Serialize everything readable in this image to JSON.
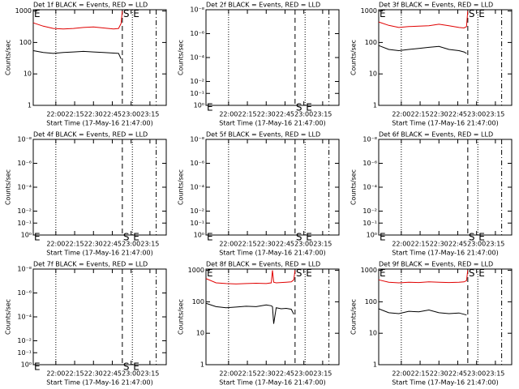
{
  "chart_data": [
    {
      "type": "line",
      "title": "Det 1f BLACK = Events, RED = LLD",
      "y_label": "Counts/sec",
      "x_label": "Start Time (17-May-16 21:47:00)",
      "log_scale": true,
      "xlim": [
        1302,
        1408
      ],
      "xticks": [
        {
          "value": 1320,
          "label": "22:00"
        },
        {
          "value": 1335,
          "label": "22:15"
        },
        {
          "value": 1350,
          "label": "22:30"
        },
        {
          "value": 1365,
          "label": "22:45"
        },
        {
          "value": 1380,
          "label": "23:00"
        },
        {
          "value": 1395,
          "label": "23:15"
        }
      ],
      "ylim": [
        1,
        1100
      ],
      "yticks": [
        1,
        10,
        100,
        1000
      ],
      "x": [
        1302,
        1310,
        1318,
        1326,
        1334,
        1342,
        1350,
        1358,
        1366,
        1370,
        1372,
        1373
      ],
      "series": [
        {
          "color": "#e00000",
          "values": [
            420,
            330,
            280,
            270,
            280,
            300,
            310,
            290,
            270,
            280,
            400,
            1000
          ]
        },
        {
          "color": "#000000",
          "values": [
            55,
            48,
            45,
            48,
            50,
            52,
            50,
            48,
            46,
            45,
            30,
            null
          ]
        }
      ],
      "markers": [
        {
          "x": 1320,
          "style": "dotted"
        },
        {
          "x": 1373,
          "style": "dashed"
        },
        {
          "x": 1381,
          "style": "dotted"
        },
        {
          "x": 1400,
          "style": "dashdot"
        }
      ],
      "annotations": [
        {
          "text": "E",
          "x": 1302,
          "y": 800
        },
        {
          "text": "S",
          "x": 1373,
          "y": 800
        },
        {
          "text": "E",
          "x": 1381,
          "y": 800
        }
      ]
    },
    {
      "type": "line",
      "title": "Det 2f BLACK = Events, RED = LLD",
      "y_label": "Counts/sec",
      "x_label": "Start Time (17-May-16 21:47:00)",
      "log_scale": true,
      "xlim": [
        1302,
        1408
      ],
      "xticks": [
        {
          "value": 1320,
          "label": "22:00"
        },
        {
          "value": 1335,
          "label": "22:15"
        },
        {
          "value": 1350,
          "label": "22:30"
        },
        {
          "value": 1365,
          "label": "22:45"
        },
        {
          "value": 1380,
          "label": "23:00"
        },
        {
          "value": 1395,
          "label": "23:15"
        }
      ],
      "ylim": [
        1,
        1e-08
      ],
      "yticks": [
        {
          "value": 1e-08,
          "label": "10⁻⁸"
        },
        {
          "value": 1e-06,
          "label": "10⁻⁶"
        },
        {
          "value": 0.0001,
          "label": "10⁻⁴"
        },
        {
          "value": 0.01,
          "label": "10⁻²"
        },
        {
          "value": 0.1,
          "label": "10⁻¹"
        },
        {
          "value": 1,
          "label": "10⁰"
        }
      ],
      "markers": [
        {
          "x": 1320,
          "style": "dotted"
        },
        {
          "x": 1373,
          "style": "dashed"
        },
        {
          "x": 1381,
          "style": "dotted"
        },
        {
          "x": 1400,
          "style": "dashdot"
        }
      ],
      "annotations": [
        {
          "text": "E",
          "x": 1302,
          "y": 1.6
        },
        {
          "text": "S",
          "x": 1373,
          "y": 1.6
        },
        {
          "text": "E",
          "x": 1381,
          "y": 1.6
        }
      ]
    },
    {
      "type": "line",
      "title": "Det 3f BLACK = Events, RED = LLD",
      "y_label": "Counts/sec",
      "x_label": "Start Time (17-May-16 21:47:00)",
      "log_scale": true,
      "xlim": [
        1302,
        1408
      ],
      "xticks": [
        {
          "value": 1320,
          "label": "22:00"
        },
        {
          "value": 1335,
          "label": "22:15"
        },
        {
          "value": 1350,
          "label": "22:30"
        },
        {
          "value": 1365,
          "label": "22:45"
        },
        {
          "value": 1380,
          "label": "23:00"
        },
        {
          "value": 1395,
          "label": "23:15"
        }
      ],
      "ylim": [
        1,
        1100
      ],
      "yticks": [
        1,
        10,
        100,
        1000
      ],
      "x": [
        1302,
        1310,
        1318,
        1326,
        1334,
        1342,
        1350,
        1358,
        1366,
        1370,
        1372,
        1373
      ],
      "series": [
        {
          "color": "#e00000",
          "values": [
            450,
            350,
            300,
            320,
            330,
            340,
            380,
            340,
            300,
            290,
            320,
            1000
          ]
        },
        {
          "color": "#000000",
          "values": [
            80,
            60,
            55,
            60,
            65,
            70,
            75,
            60,
            55,
            50,
            45,
            null
          ]
        }
      ],
      "markers": [
        {
          "x": 1320,
          "style": "dotted"
        },
        {
          "x": 1373,
          "style": "dashed"
        },
        {
          "x": 1381,
          "style": "dotted"
        },
        {
          "x": 1400,
          "style": "dashdot"
        }
      ],
      "annotations": [
        {
          "text": "E",
          "x": 1302,
          "y": 800
        },
        {
          "text": "S",
          "x": 1373,
          "y": 800
        },
        {
          "text": "E",
          "x": 1381,
          "y": 800
        }
      ]
    },
    {
      "type": "line",
      "title": "Det 4f BLACK = Events, RED = LLD",
      "y_label": "Counts/sec",
      "x_label": "Start Time (17-May-16 21:47:00)",
      "log_scale": true,
      "xlim": [
        1302,
        1408
      ],
      "xticks": [
        {
          "value": 1320,
          "label": "22:00"
        },
        {
          "value": 1335,
          "label": "22:15"
        },
        {
          "value": 1350,
          "label": "22:30"
        },
        {
          "value": 1365,
          "label": "22:45"
        },
        {
          "value": 1380,
          "label": "23:00"
        },
        {
          "value": 1395,
          "label": "23:15"
        }
      ],
      "ylim": [
        1,
        1e-08
      ],
      "yticks": [
        {
          "value": 1e-08,
          "label": "10⁻⁸"
        },
        {
          "value": 1e-06,
          "label": "10⁻⁶"
        },
        {
          "value": 0.0001,
          "label": "10⁻⁴"
        },
        {
          "value": 0.01,
          "label": "10⁻²"
        },
        {
          "value": 0.1,
          "label": "10⁻¹"
        },
        {
          "value": 1,
          "label": "10⁰"
        }
      ],
      "markers": [
        {
          "x": 1320,
          "style": "dotted"
        },
        {
          "x": 1373,
          "style": "dashed"
        },
        {
          "x": 1381,
          "style": "dotted"
        },
        {
          "x": 1400,
          "style": "dashdot"
        }
      ],
      "annotations": [
        {
          "text": "E",
          "x": 1302,
          "y": 1.6
        },
        {
          "text": "S",
          "x": 1373,
          "y": 1.6
        },
        {
          "text": "E",
          "x": 1381,
          "y": 1.6
        }
      ]
    },
    {
      "type": "line",
      "title": "Det 5f BLACK = Events, RED = LLD",
      "y_label": "Counts/sec",
      "x_label": "Start Time (17-May-16 21:47:00)",
      "log_scale": true,
      "xlim": [
        1302,
        1408
      ],
      "xticks": [
        {
          "value": 1320,
          "label": "22:00"
        },
        {
          "value": 1335,
          "label": "22:15"
        },
        {
          "value": 1350,
          "label": "22:30"
        },
        {
          "value": 1365,
          "label": "22:45"
        },
        {
          "value": 1380,
          "label": "23:00"
        },
        {
          "value": 1395,
          "label": "23:15"
        }
      ],
      "ylim": [
        1,
        1e-08
      ],
      "yticks": [
        {
          "value": 1e-08,
          "label": "10⁻⁸"
        },
        {
          "value": 1e-06,
          "label": "10⁻⁶"
        },
        {
          "value": 0.0001,
          "label": "10⁻⁴"
        },
        {
          "value": 0.01,
          "label": "10⁻²"
        },
        {
          "value": 0.1,
          "label": "10⁻¹"
        },
        {
          "value": 1,
          "label": "10⁰"
        }
      ],
      "markers": [
        {
          "x": 1320,
          "style": "dotted"
        },
        {
          "x": 1373,
          "style": "dashed"
        },
        {
          "x": 1381,
          "style": "dotted"
        },
        {
          "x": 1400,
          "style": "dashdot"
        }
      ],
      "annotations": [
        {
          "text": "E",
          "x": 1302,
          "y": 1.6
        },
        {
          "text": "S",
          "x": 1373,
          "y": 1.6
        },
        {
          "text": "E",
          "x": 1381,
          "y": 1.6
        }
      ]
    },
    {
      "type": "line",
      "title": "Det 6f BLACK = Events, RED = LLD",
      "y_label": "Counts/sec",
      "x_label": "Start Time (17-May-16 21:47:00)",
      "log_scale": true,
      "xlim": [
        1302,
        1408
      ],
      "xticks": [
        {
          "value": 1320,
          "label": "22:00"
        },
        {
          "value": 1335,
          "label": "22:15"
        },
        {
          "value": 1350,
          "label": "22:30"
        },
        {
          "value": 1365,
          "label": "22:45"
        },
        {
          "value": 1380,
          "label": "23:00"
        },
        {
          "value": 1395,
          "label": "23:15"
        }
      ],
      "ylim": [
        1,
        1e-08
      ],
      "yticks": [
        {
          "value": 1e-08,
          "label": "10⁻⁸"
        },
        {
          "value": 1e-06,
          "label": "10⁻⁶"
        },
        {
          "value": 0.0001,
          "label": "10⁻⁴"
        },
        {
          "value": 0.01,
          "label": "10⁻²"
        },
        {
          "value": 0.1,
          "label": "10⁻¹"
        },
        {
          "value": 1,
          "label": "10⁰"
        }
      ],
      "markers": [
        {
          "x": 1320,
          "style": "dotted"
        },
        {
          "x": 1373,
          "style": "dashed"
        },
        {
          "x": 1381,
          "style": "dotted"
        },
        {
          "x": 1400,
          "style": "dashdot"
        }
      ],
      "annotations": [
        {
          "text": "E",
          "x": 1302,
          "y": 1.6
        },
        {
          "text": "S",
          "x": 1373,
          "y": 1.6
        },
        {
          "text": "E",
          "x": 1381,
          "y": 1.6
        }
      ]
    },
    {
      "type": "line",
      "title": "Det 7f BLACK = Events, RED = LLD",
      "y_label": "Counts/sec",
      "x_label": "Start Time (17-May-16 21:47:00)",
      "log_scale": true,
      "xlim": [
        1302,
        1408
      ],
      "xticks": [
        {
          "value": 1320,
          "label": "22:00"
        },
        {
          "value": 1335,
          "label": "22:15"
        },
        {
          "value": 1350,
          "label": "22:30"
        },
        {
          "value": 1365,
          "label": "22:45"
        },
        {
          "value": 1380,
          "label": "23:00"
        },
        {
          "value": 1395,
          "label": "23:15"
        }
      ],
      "ylim": [
        1,
        1e-08
      ],
      "yticks": [
        {
          "value": 1e-08,
          "label": "10⁻⁸"
        },
        {
          "value": 1e-06,
          "label": "10⁻⁶"
        },
        {
          "value": 0.0001,
          "label": "10⁻⁴"
        },
        {
          "value": 0.01,
          "label": "10⁻²"
        },
        {
          "value": 0.1,
          "label": "10⁻¹"
        },
        {
          "value": 1,
          "label": "10⁰"
        }
      ],
      "markers": [
        {
          "x": 1320,
          "style": "dotted"
        },
        {
          "x": 1373,
          "style": "dashed"
        },
        {
          "x": 1381,
          "style": "dotted"
        },
        {
          "x": 1400,
          "style": "dashdot"
        }
      ],
      "annotations": [
        {
          "text": "E",
          "x": 1302,
          "y": 1.6
        },
        {
          "text": "S",
          "x": 1373,
          "y": 1.6
        },
        {
          "text": "E",
          "x": 1381,
          "y": 1.6
        }
      ]
    },
    {
      "type": "line",
      "title": "Det 8f BLACK = Events, RED = LLD",
      "y_label": "Counts/sec",
      "x_label": "Start Time (17-May-16 21:47:00)",
      "log_scale": true,
      "xlim": [
        1302,
        1408
      ],
      "xticks": [
        {
          "value": 1320,
          "label": "22:00"
        },
        {
          "value": 1335,
          "label": "22:15"
        },
        {
          "value": 1350,
          "label": "22:30"
        },
        {
          "value": 1365,
          "label": "22:45"
        },
        {
          "value": 1380,
          "label": "23:00"
        },
        {
          "value": 1395,
          "label": "23:15"
        }
      ],
      "ylim": [
        1,
        1100
      ],
      "yticks": [
        1,
        10,
        100,
        1000
      ],
      "x": [
        1302,
        1310,
        1318,
        1326,
        1334,
        1342,
        1350,
        1354,
        1355,
        1356,
        1358,
        1362,
        1366,
        1370,
        1372,
        1373
      ],
      "series": [
        {
          "color": "#e00000",
          "values": [
            550,
            400,
            380,
            370,
            380,
            390,
            380,
            400,
            1000,
            420,
            400,
            410,
            420,
            430,
            500,
            1000
          ]
        },
        {
          "color": "#000000",
          "values": [
            90,
            70,
            65,
            68,
            72,
            70,
            80,
            75,
            70,
            20,
            65,
            60,
            62,
            58,
            40,
            null
          ]
        }
      ],
      "markers": [
        {
          "x": 1320,
          "style": "dotted"
        },
        {
          "x": 1373,
          "style": "dashed"
        },
        {
          "x": 1381,
          "style": "dotted"
        },
        {
          "x": 1400,
          "style": "dashdot"
        }
      ],
      "annotations": [
        {
          "text": "E",
          "x": 1302,
          "y": 800
        },
        {
          "text": "S",
          "x": 1373,
          "y": 800
        },
        {
          "text": "E",
          "x": 1381,
          "y": 800
        }
      ]
    },
    {
      "type": "line",
      "title": "Det 9f BLACK = Events, RED = LLD",
      "y_label": "Counts/sec",
      "x_label": "Start Time (17-May-16 21:47:00)",
      "log_scale": true,
      "xlim": [
        1302,
        1408
      ],
      "xticks": [
        {
          "value": 1320,
          "label": "22:00"
        },
        {
          "value": 1335,
          "label": "22:15"
        },
        {
          "value": 1350,
          "label": "22:30"
        },
        {
          "value": 1365,
          "label": "22:45"
        },
        {
          "value": 1380,
          "label": "23:00"
        },
        {
          "value": 1395,
          "label": "23:15"
        }
      ],
      "ylim": [
        1,
        1100
      ],
      "yticks": [
        1,
        10,
        100,
        1000
      ],
      "x": [
        1302,
        1310,
        1318,
        1326,
        1334,
        1342,
        1350,
        1358,
        1366,
        1370,
        1372,
        1373
      ],
      "series": [
        {
          "color": "#e00000",
          "values": [
            500,
            420,
            400,
            420,
            410,
            430,
            420,
            410,
            420,
            430,
            470,
            1000
          ]
        },
        {
          "color": "#000000",
          "values": [
            60,
            45,
            42,
            50,
            48,
            55,
            45,
            42,
            44,
            40,
            38,
            null
          ]
        }
      ],
      "markers": [
        {
          "x": 1320,
          "style": "dotted"
        },
        {
          "x": 1373,
          "style": "dashed"
        },
        {
          "x": 1381,
          "style": "dotted"
        },
        {
          "x": 1400,
          "style": "dashdot"
        }
      ],
      "annotations": [
        {
          "text": "E",
          "x": 1302,
          "y": 800
        },
        {
          "text": "S",
          "x": 1373,
          "y": 800
        },
        {
          "text": "E",
          "x": 1381,
          "y": 800
        }
      ]
    }
  ]
}
